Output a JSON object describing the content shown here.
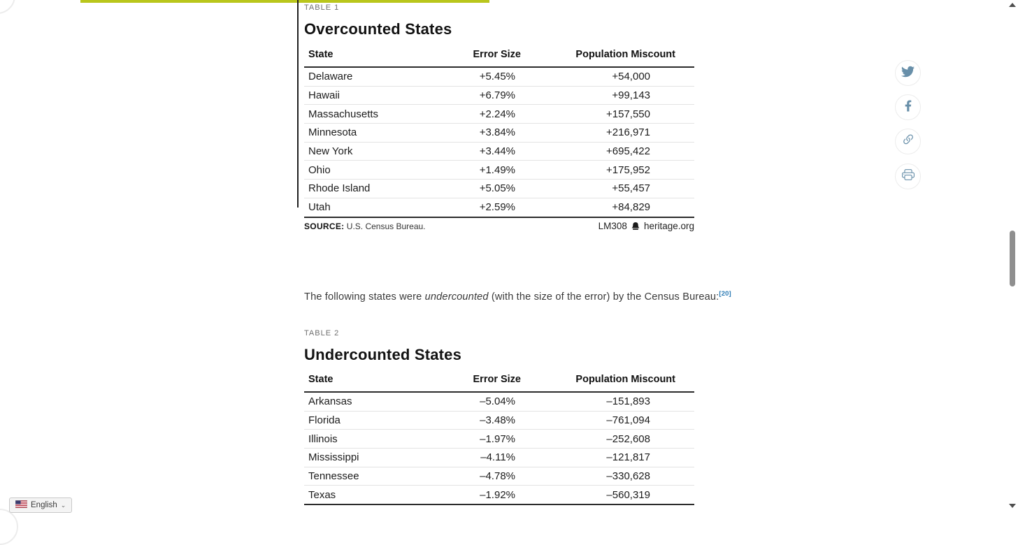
{
  "colors": {
    "progress_accent": "#b9c61c",
    "share_icon_blue": "#688fa9",
    "footnote_link_blue": "#2e7cb5"
  },
  "tables": [
    {
      "eyebrow": "TABLE 1",
      "title": "Overcounted States",
      "columns": [
        "State",
        "Error Size",
        "Population Miscount"
      ],
      "rows": [
        [
          "Delaware",
          "+5.45%",
          "+54,000"
        ],
        [
          "Hawaii",
          "+6.79%",
          "+99,143"
        ],
        [
          "Massachusetts",
          "+2.24%",
          "+157,550"
        ],
        [
          "Minnesota",
          "+3.84%",
          "+216,971"
        ],
        [
          "New York",
          "+3.44%",
          "+695,422"
        ],
        [
          "Ohio",
          "+1.49%",
          "+175,952"
        ],
        [
          "Rhode Island",
          "+5.05%",
          "+55,457"
        ],
        [
          "Utah",
          "+2.59%",
          "+84,829"
        ]
      ],
      "source_label": "SOURCE:",
      "source_text": "U.S. Census Bureau.",
      "code": "LM308",
      "logo_icon": "heritage-bell-icon",
      "site": "heritage.org"
    },
    {
      "eyebrow": "TABLE 2",
      "title": "Undercounted States",
      "columns": [
        "State",
        "Error Size",
        "Population Miscount"
      ],
      "rows": [
        [
          "Arkansas",
          "–5.04%",
          "–151,893"
        ],
        [
          "Florida",
          "–3.48%",
          "–761,094"
        ],
        [
          "Illinois",
          "–1.97%",
          "–252,608"
        ],
        [
          "Mississippi",
          "–4.11%",
          "–121,817"
        ],
        [
          "Tennessee",
          "–4.78%",
          "–330,628"
        ],
        [
          "Texas",
          "–1.92%",
          "–560,319"
        ]
      ]
    }
  ],
  "paragraph": {
    "before": "The following states were ",
    "italic": "undercounted",
    "after": " (with the size of the error) by the Census Bureau:",
    "footnote": "[20]"
  },
  "share": {
    "items": [
      {
        "icon": "twitter-icon"
      },
      {
        "icon": "facebook-icon"
      },
      {
        "icon": "link-icon"
      },
      {
        "icon": "print-icon"
      }
    ]
  },
  "language": {
    "label": "English",
    "flag_icon": "us-flag-icon",
    "chevron": "⌄"
  }
}
